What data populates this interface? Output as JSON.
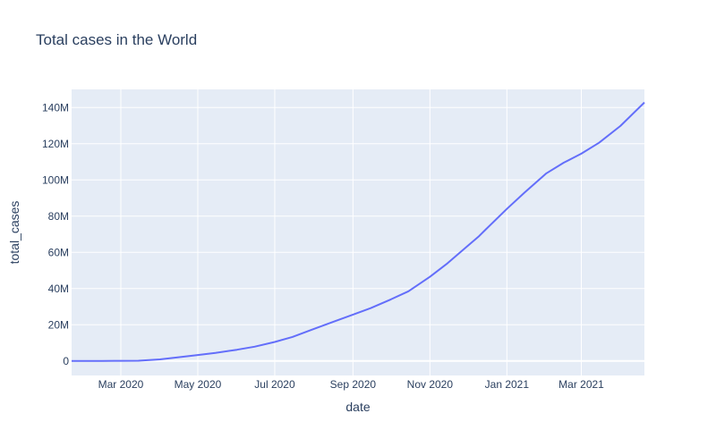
{
  "chart_data": {
    "type": "line",
    "title": "Total cases in the World",
    "xlabel": "date",
    "ylabel": "total_cases",
    "grid": true,
    "legend": "none",
    "line_color": "#636efa",
    "plot_bg": "#e5ecf6",
    "xlim": [
      "2020-01-22",
      "2021-04-20"
    ],
    "ylim": [
      -8000000,
      150000000
    ],
    "x_ticks": [
      {
        "date": "2020-03-01",
        "label": "Mar 2020"
      },
      {
        "date": "2020-05-01",
        "label": "May 2020"
      },
      {
        "date": "2020-07-01",
        "label": "Jul 2020"
      },
      {
        "date": "2020-09-01",
        "label": "Sep 2020"
      },
      {
        "date": "2020-11-01",
        "label": "Nov 2020"
      },
      {
        "date": "2021-01-01",
        "label": "Jan 2021"
      },
      {
        "date": "2021-03-01",
        "label": "Mar 2021"
      }
    ],
    "y_ticks": [
      {
        "value": 0,
        "label": "0"
      },
      {
        "value": 20000000,
        "label": "20M"
      },
      {
        "value": 40000000,
        "label": "40M"
      },
      {
        "value": 60000000,
        "label": "60M"
      },
      {
        "value": 80000000,
        "label": "80M"
      },
      {
        "value": 100000000,
        "label": "100M"
      },
      {
        "value": 120000000,
        "label": "120M"
      },
      {
        "value": 140000000,
        "label": "140M"
      }
    ],
    "series": [
      {
        "name": "total_cases",
        "points": [
          {
            "x": "2020-01-22",
            "y": 0
          },
          {
            "x": "2020-02-15",
            "y": 70000
          },
          {
            "x": "2020-03-01",
            "y": 90000
          },
          {
            "x": "2020-03-15",
            "y": 170000
          },
          {
            "x": "2020-04-01",
            "y": 900000
          },
          {
            "x": "2020-04-15",
            "y": 2000000
          },
          {
            "x": "2020-05-01",
            "y": 3300000
          },
          {
            "x": "2020-05-15",
            "y": 4500000
          },
          {
            "x": "2020-06-01",
            "y": 6200000
          },
          {
            "x": "2020-06-15",
            "y": 7900000
          },
          {
            "x": "2020-07-01",
            "y": 10500000
          },
          {
            "x": "2020-07-15",
            "y": 13300000
          },
          {
            "x": "2020-08-01",
            "y": 17700000
          },
          {
            "x": "2020-08-15",
            "y": 21300000
          },
          {
            "x": "2020-09-01",
            "y": 25600000
          },
          {
            "x": "2020-09-15",
            "y": 29200000
          },
          {
            "x": "2020-10-01",
            "y": 34000000
          },
          {
            "x": "2020-10-15",
            "y": 38500000
          },
          {
            "x": "2020-11-01",
            "y": 46500000
          },
          {
            "x": "2020-11-15",
            "y": 54000000
          },
          {
            "x": "2020-12-01",
            "y": 63600000
          },
          {
            "x": "2020-12-10",
            "y": 69000000
          },
          {
            "x": "2020-12-15",
            "y": 72500000
          },
          {
            "x": "2021-01-01",
            "y": 84000000
          },
          {
            "x": "2021-01-15",
            "y": 93000000
          },
          {
            "x": "2021-02-01",
            "y": 103500000
          },
          {
            "x": "2021-02-15",
            "y": 109500000
          },
          {
            "x": "2021-03-01",
            "y": 114500000
          },
          {
            "x": "2021-03-15",
            "y": 120500000
          },
          {
            "x": "2021-04-01",
            "y": 129800000
          },
          {
            "x": "2021-04-20",
            "y": 142800000
          }
        ]
      }
    ]
  }
}
